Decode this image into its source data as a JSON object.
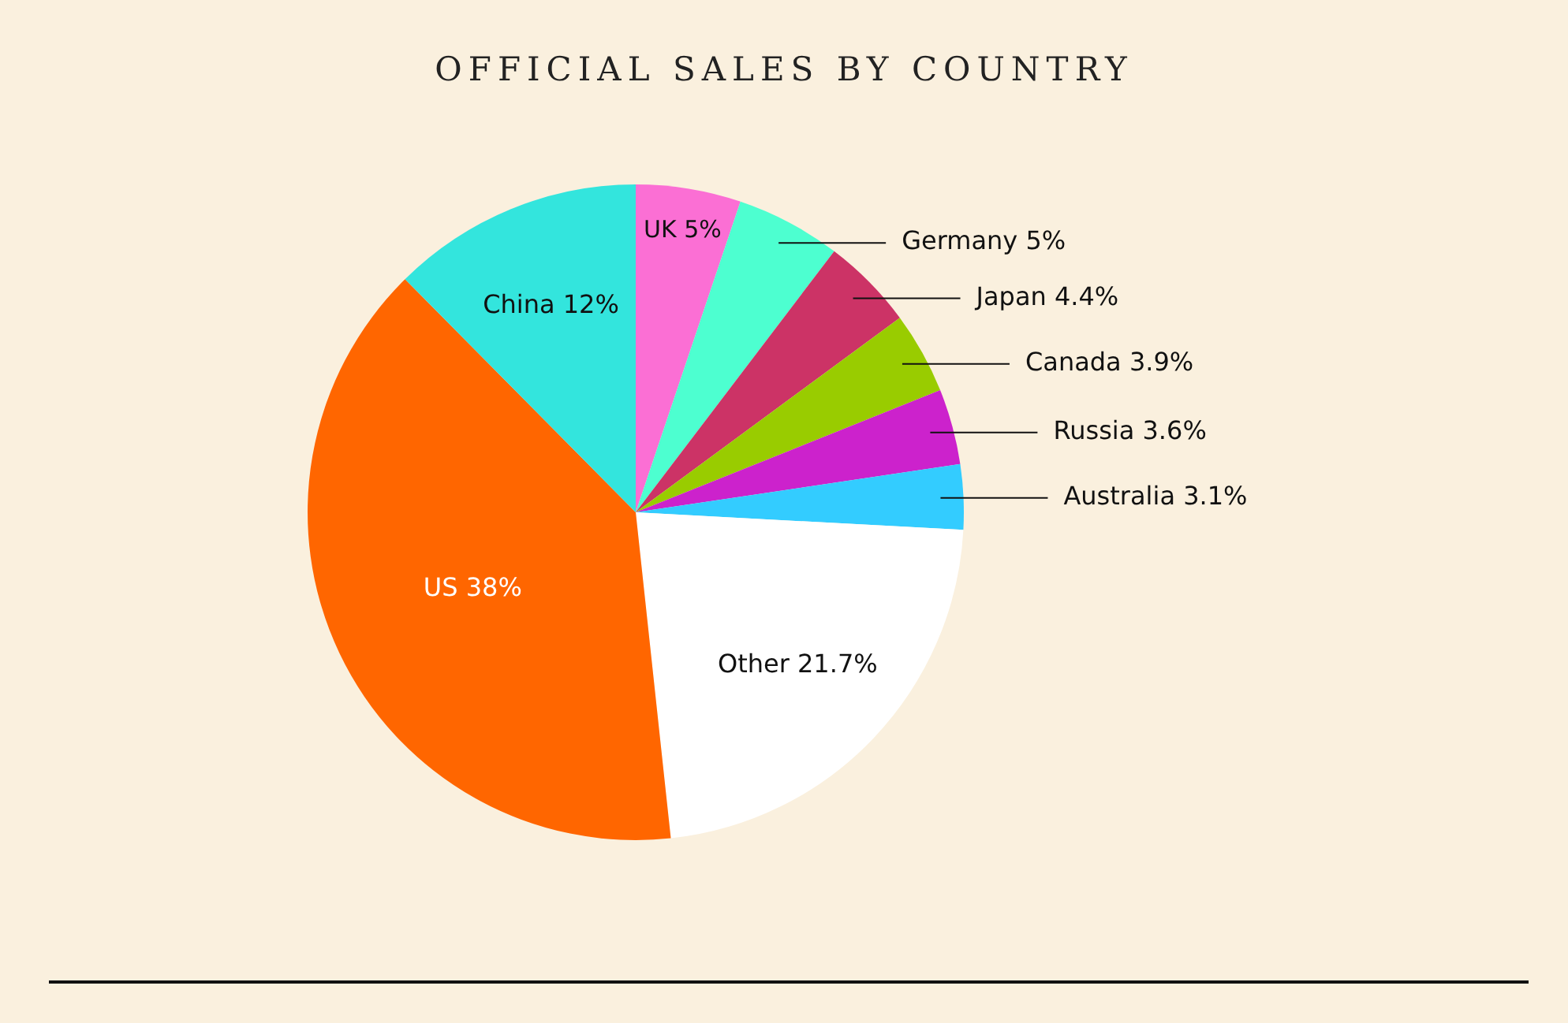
{
  "chart_data": {
    "type": "pie",
    "title": "OFFICIAL SALES BY COUNTRY",
    "categories": [
      "UK",
      "Germany",
      "Japan",
      "Canada",
      "Russia",
      "Australia",
      "Other",
      "US",
      "China"
    ],
    "values": [
      5,
      5,
      4.4,
      3.9,
      3.6,
      3.1,
      21.7,
      38,
      12
    ],
    "value_labels": [
      "5%",
      "5%",
      "4.4%",
      "3.9%",
      "3.6%",
      "3.1%",
      "21.7%",
      "38%",
      "12%"
    ],
    "colors": [
      "#fb6fd4",
      "#4dffd0",
      "#cc3366",
      "#99cc00",
      "#cc22cc",
      "#33ccff",
      "#ffffff",
      "#ff6600",
      "#33e5dd"
    ],
    "legend": false
  }
}
